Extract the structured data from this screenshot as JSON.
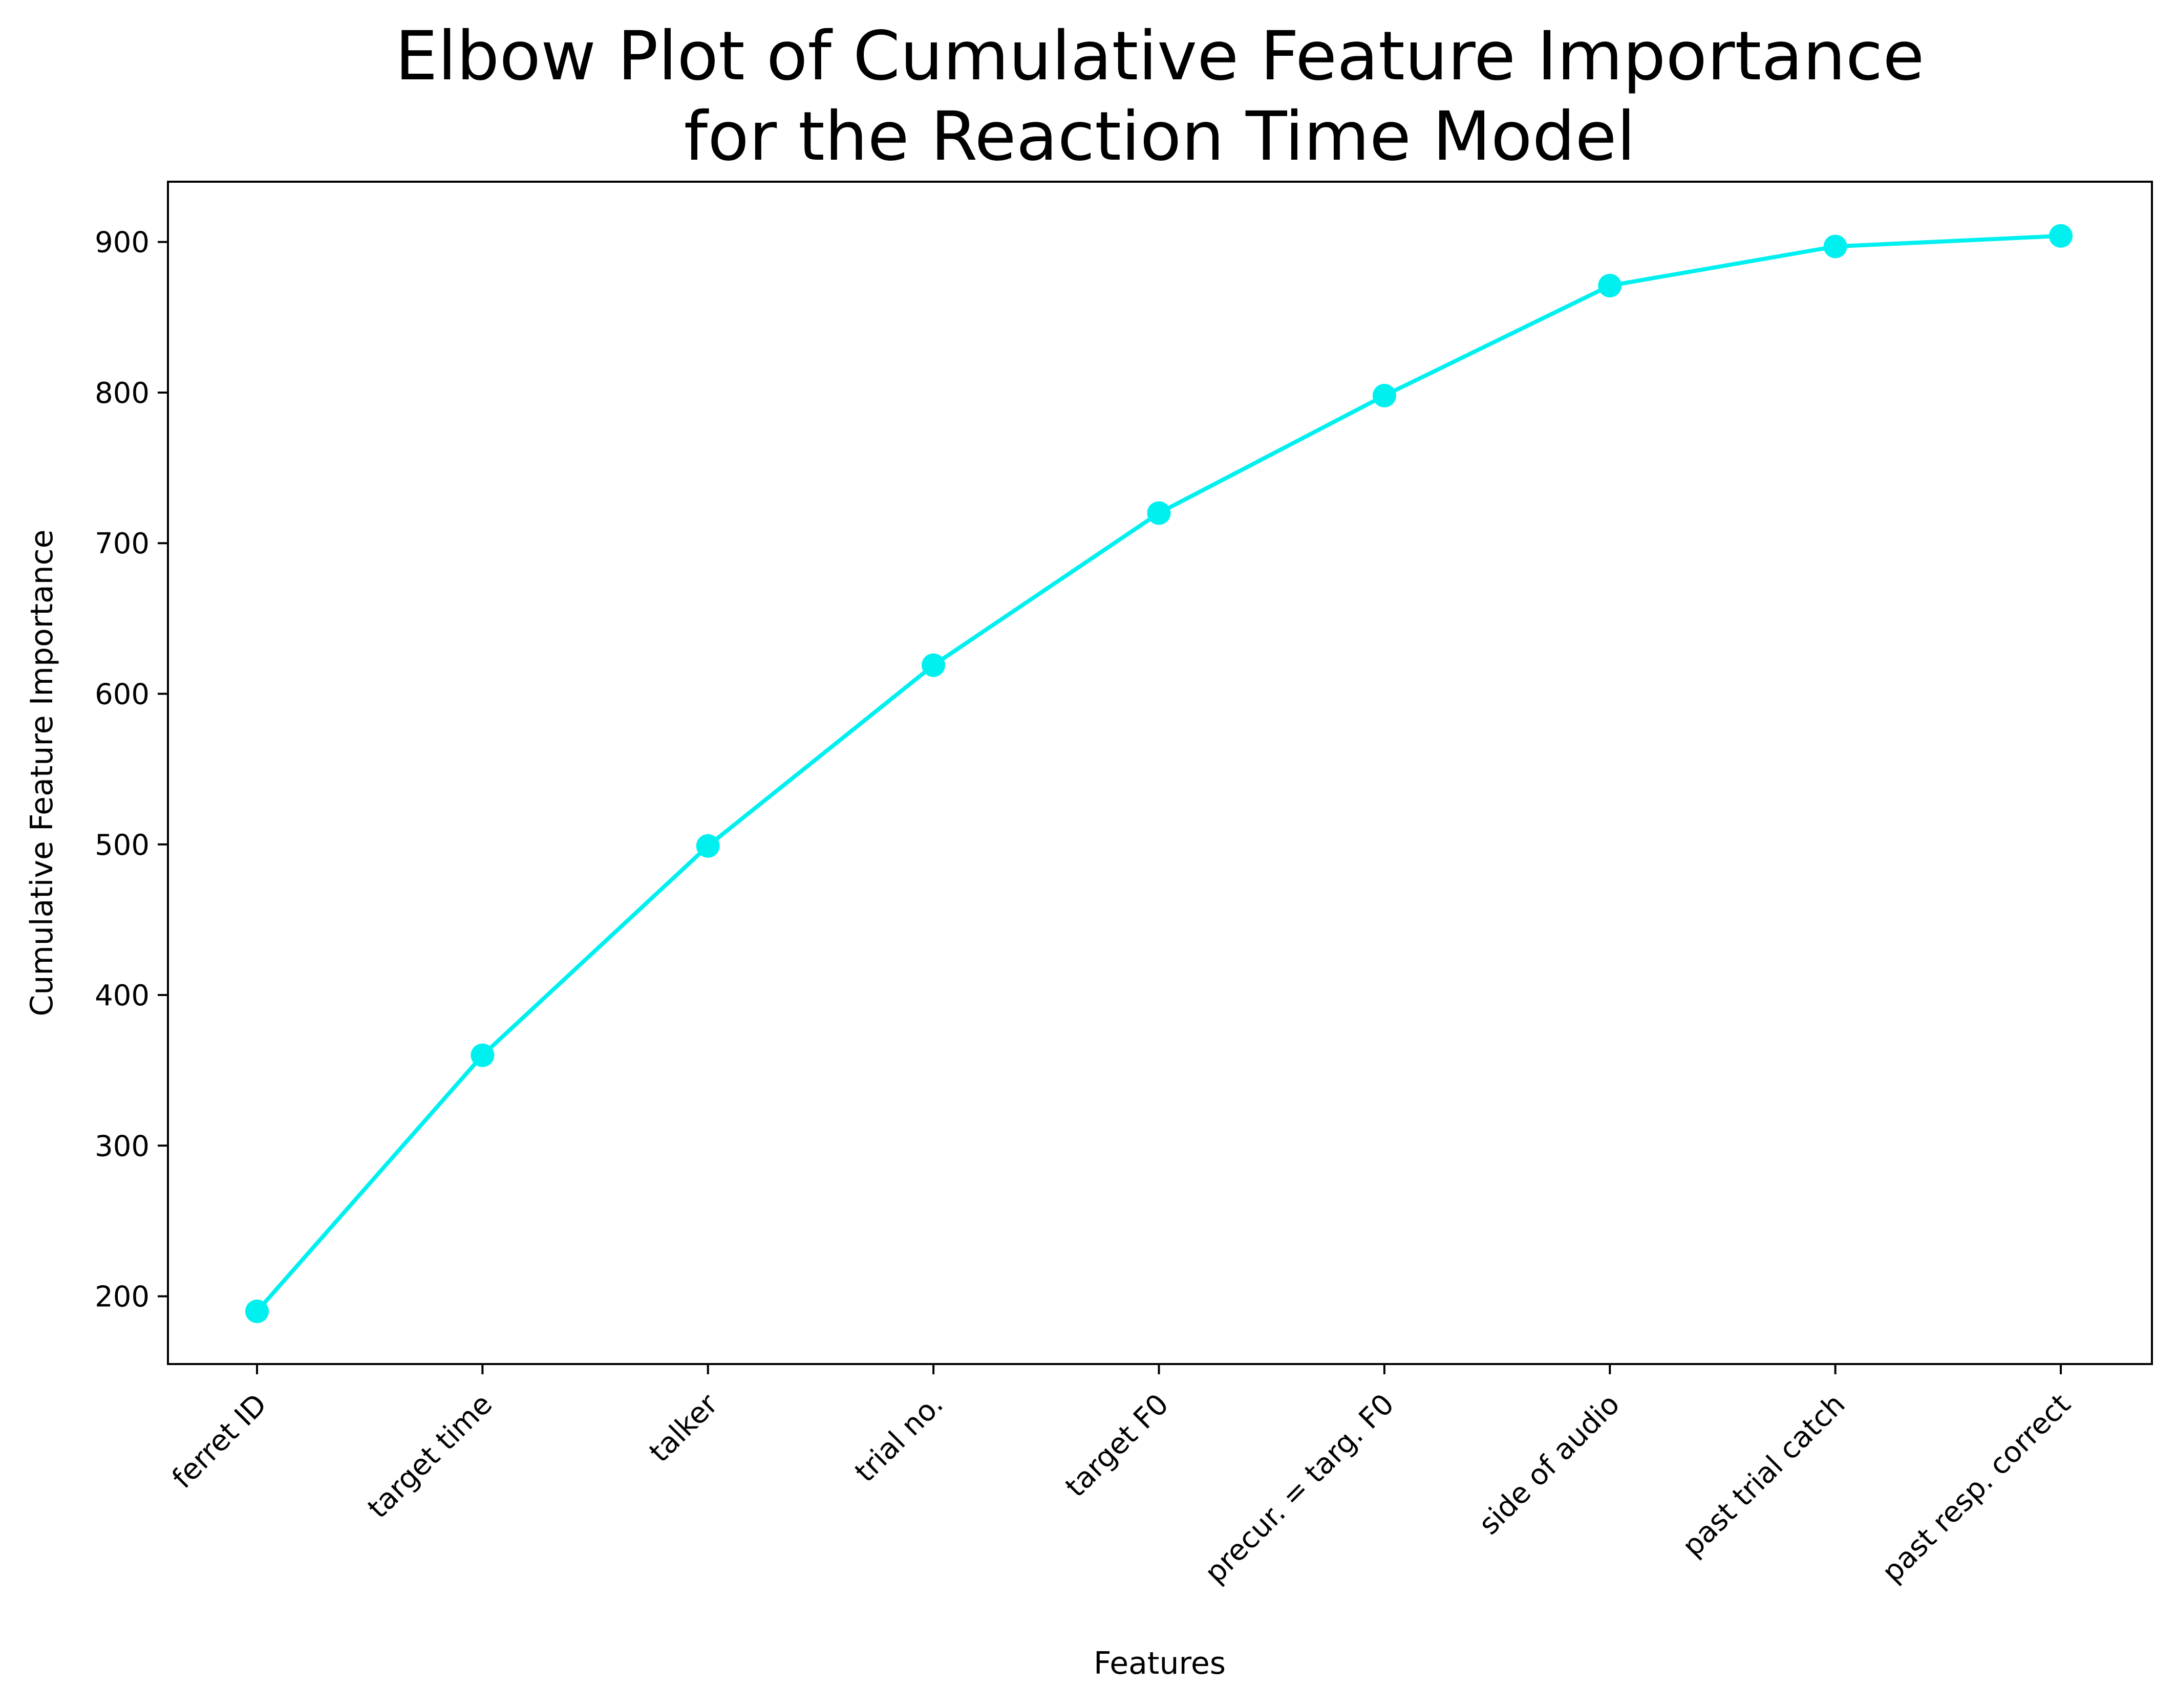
{
  "chart_data": {
    "type": "line",
    "title_lines": [
      "Elbow Plot of Cumulative Feature Importance",
      "for the Reaction Time Model"
    ],
    "xlabel": "Features",
    "ylabel": "Cumulative Feature Importance",
    "categories": [
      "ferret ID",
      "target time",
      "talker",
      "trial no.",
      "target F0",
      "precur. = targ. F0",
      "side of audio",
      "past trial catch",
      "past resp. correct"
    ],
    "values": [
      190,
      360,
      499,
      619,
      720,
      798,
      871,
      897,
      904
    ],
    "ylim": [
      155,
      940
    ],
    "yticks": [
      200,
      300,
      400,
      500,
      600,
      700,
      800,
      900
    ],
    "grid": false,
    "legend": "none",
    "line_color": "#00f0f0",
    "marker": "circle"
  }
}
